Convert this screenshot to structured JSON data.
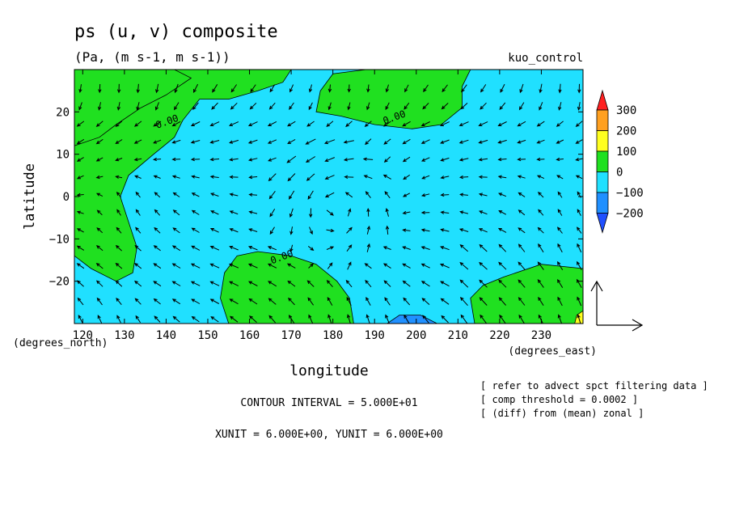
{
  "title": "ps (u, v) composite",
  "subtitle": "(Pa, (m s-1, m s-1))",
  "run_label": "kuo_control",
  "chart_data": {
    "type": "heatmap",
    "title": "ps (u, v) composite",
    "xlabel": "longitude",
    "ylabel": "latitude",
    "x_unit_label": "(degrees_east)",
    "y_unit_label": "(degrees_north)",
    "xlim": [
      118,
      240
    ],
    "ylim": [
      -30,
      30
    ],
    "x_ticks": [
      120,
      130,
      140,
      150,
      160,
      170,
      180,
      190,
      200,
      210,
      220,
      230
    ],
    "y_ticks": [
      -20,
      -10,
      0,
      10,
      20
    ],
    "x_tick_labels": [
      "120",
      "130",
      "140",
      "150",
      "160",
      "170",
      "180",
      "190",
      "200",
      "210",
      "220",
      "230"
    ],
    "y_tick_labels": [
      "−20",
      "−10",
      "0",
      "10",
      "20"
    ],
    "contour_labels": [
      {
        "text": "0.00",
        "lon": 140.5,
        "lat": 17
      },
      {
        "text": "0.00",
        "lon": 195,
        "lat": 18
      },
      {
        "text": "0.00",
        "lon": 168,
        "lat": -15
      }
    ],
    "positive_regions": [
      {
        "name": "west",
        "outline": [
          [
            118,
            30
          ],
          [
            142,
            30
          ],
          [
            146,
            28
          ],
          [
            140,
            24
          ],
          [
            134,
            21
          ],
          [
            128,
            17
          ],
          [
            124,
            14
          ],
          [
            118,
            12
          ]
        ]
      },
      {
        "name": "northwest",
        "outline": [
          [
            118,
            30
          ],
          [
            170,
            30
          ],
          [
            168,
            27
          ],
          [
            162,
            25
          ],
          [
            155,
            23
          ],
          [
            148,
            23
          ],
          [
            144,
            18
          ],
          [
            142,
            14
          ],
          [
            137,
            10
          ],
          [
            131,
            5
          ],
          [
            129,
            0
          ],
          [
            131,
            -6
          ],
          [
            133,
            -12
          ],
          [
            132,
            -18
          ],
          [
            128,
            -20
          ],
          [
            122,
            -17
          ],
          [
            118,
            -14
          ]
        ]
      },
      {
        "name": "north-central",
        "outline": [
          [
            177,
            25
          ],
          [
            180,
            29
          ],
          [
            188,
            30
          ],
          [
            204,
            30
          ],
          [
            213,
            30
          ],
          [
            211,
            26
          ],
          [
            211,
            21
          ],
          [
            206,
            17
          ],
          [
            199,
            16
          ],
          [
            190,
            17
          ],
          [
            182,
            19
          ],
          [
            176,
            20
          ]
        ]
      },
      {
        "name": "south-central",
        "outline": [
          [
            155,
            -30
          ],
          [
            185,
            -30
          ],
          [
            184,
            -24
          ],
          [
            181,
            -20
          ],
          [
            176,
            -16
          ],
          [
            170,
            -14
          ],
          [
            162,
            -13
          ],
          [
            157,
            -14
          ],
          [
            154,
            -18
          ],
          [
            153,
            -24
          ]
        ]
      },
      {
        "name": "southeast",
        "outline": [
          [
            214,
            -30
          ],
          [
            240,
            -30
          ],
          [
            240,
            -17
          ],
          [
            230,
            -16
          ],
          [
            221,
            -19
          ],
          [
            216,
            -21
          ],
          [
            213,
            -24
          ]
        ]
      }
    ],
    "negative_regions": [
      {
        "name": "south-min",
        "outline": [
          [
            193,
            -30
          ],
          [
            205,
            -30
          ],
          [
            201,
            -28
          ],
          [
            196,
            -28
          ]
        ]
      }
    ],
    "positive_top_regions": [
      {
        "name": "se-corner",
        "outline": [
          [
            238,
            -30
          ],
          [
            240,
            -30
          ],
          [
            240,
            -27
          ],
          [
            238.5,
            -28
          ]
        ]
      }
    ],
    "vector_field": {
      "lon_spacing": 6,
      "lat_spacing": 6
    },
    "colorbar": {
      "levels": [
        "300",
        "200",
        "100",
        "0",
        "−100",
        "−200"
      ],
      "colors": [
        "#ff2020",
        "#ffa020",
        "#ffff20",
        "#20e020",
        "#20e0ff",
        "#2090ff",
        "#2050ff"
      ]
    },
    "reference_vector": {
      "xunit": "6.000E+00",
      "yunit": "6.000E+00"
    },
    "contour_interval": "5.000E+01"
  },
  "footer": {
    "contour_interval": "CONTOUR INTERVAL = 5.000E+01",
    "units": "XUNIT = 6.000E+00, YUNIT = 6.000E+00",
    "notes": [
      "[ refer to advect spct filtering data ]",
      "[ comp threshold = 0.0002 ]",
      "[ (diff) from (mean) zonal ]"
    ]
  },
  "colors": {
    "positive_fill": "#20e020",
    "negative_fill": "#20e0ff",
    "strong_negative_fill": "#2090ff",
    "arrow": "#000000"
  }
}
